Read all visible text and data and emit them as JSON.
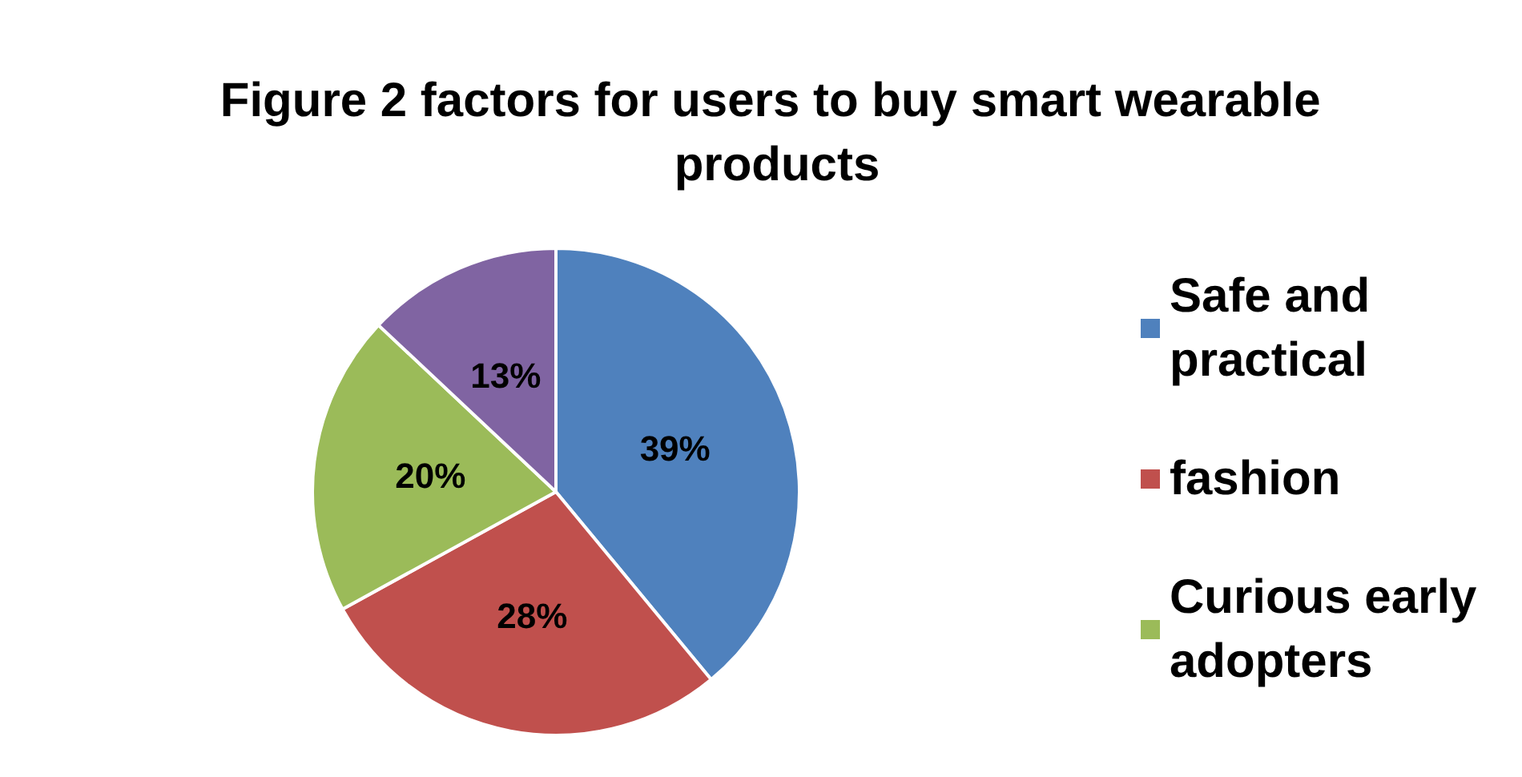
{
  "chart_data": {
    "type": "pie",
    "title": "Figure 2 factors for users to buy smart wearable products",
    "categories": [
      "Safe and practical",
      "fashion",
      "Curious early adopters",
      null
    ],
    "values": [
      39,
      28,
      20,
      13
    ],
    "colors": [
      "#4f81bd",
      "#c0504d",
      "#9bbb59",
      "#8064a2"
    ],
    "value_labels": [
      "39%",
      "28%",
      "20%",
      "13%"
    ],
    "legend": "right"
  }
}
